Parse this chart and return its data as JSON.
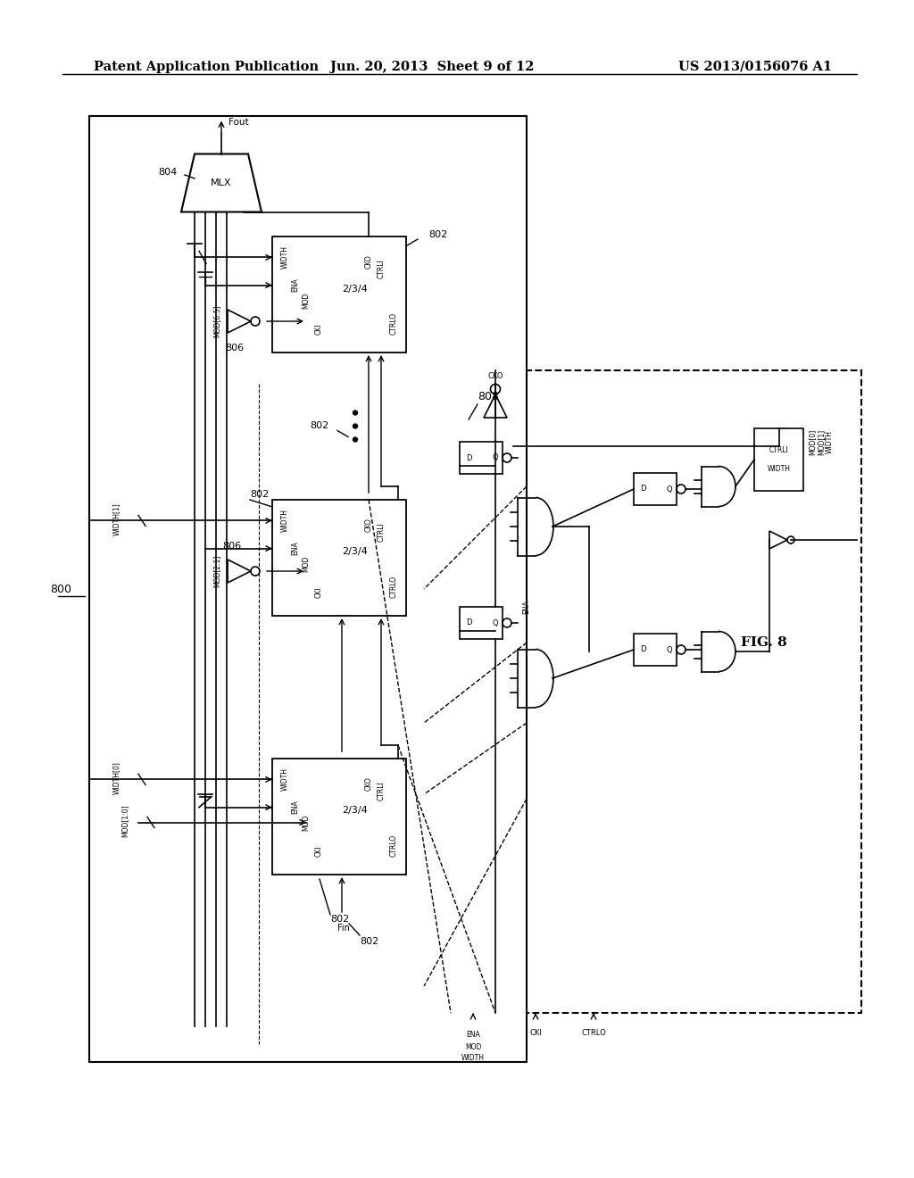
{
  "title_left": "Patent Application Publication",
  "title_center": "Jun. 20, 2013  Sheet 9 of 12",
  "title_right": "US 2013/0156076 A1",
  "fig_label": "FIG. 8",
  "bg_color": "#ffffff",
  "line_color": "#000000"
}
